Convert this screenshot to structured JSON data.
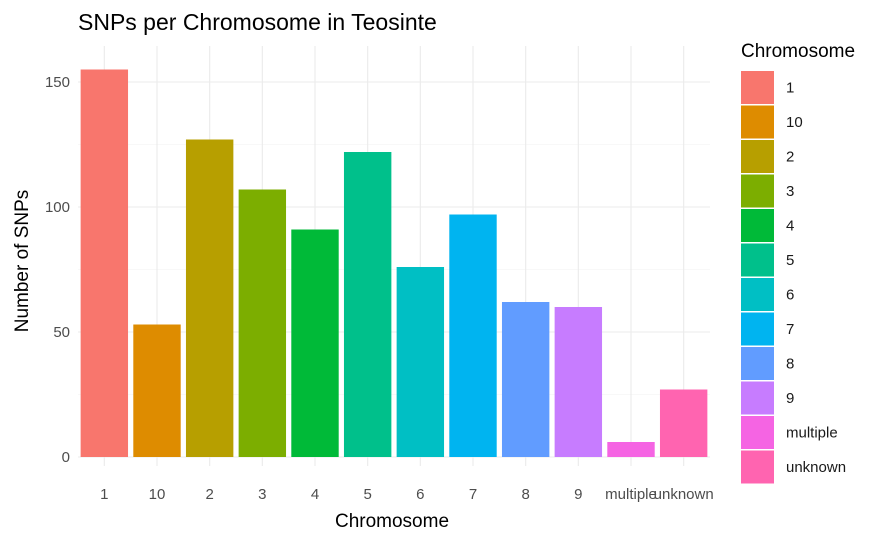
{
  "chart_data": {
    "type": "bar",
    "title": "SNPs per Chromosome in Teosinte",
    "xlabel": "Chromosome",
    "ylabel": "Number of SNPs",
    "categories": [
      "1",
      "10",
      "2",
      "3",
      "4",
      "5",
      "6",
      "7",
      "8",
      "9",
      "multiple",
      "unknown"
    ],
    "values": [
      155,
      53,
      127,
      107,
      91,
      122,
      76,
      97,
      62,
      60,
      6,
      27
    ],
    "colors": [
      "#F8766D",
      "#DE8C00",
      "#B79F00",
      "#7CAE00",
      "#00BA38",
      "#00C08B",
      "#00BFC4",
      "#00B4F0",
      "#619CFF",
      "#C77CFF",
      "#F564E3",
      "#FF64B0"
    ],
    "ylim": [
      0,
      160
    ],
    "yticks": [
      0,
      50,
      100,
      150
    ],
    "grid": true,
    "legend": {
      "title": "Chromosome",
      "position": "right",
      "entries": [
        "1",
        "10",
        "2",
        "3",
        "4",
        "5",
        "6",
        "7",
        "8",
        "9",
        "multiple",
        "unknown"
      ]
    }
  }
}
